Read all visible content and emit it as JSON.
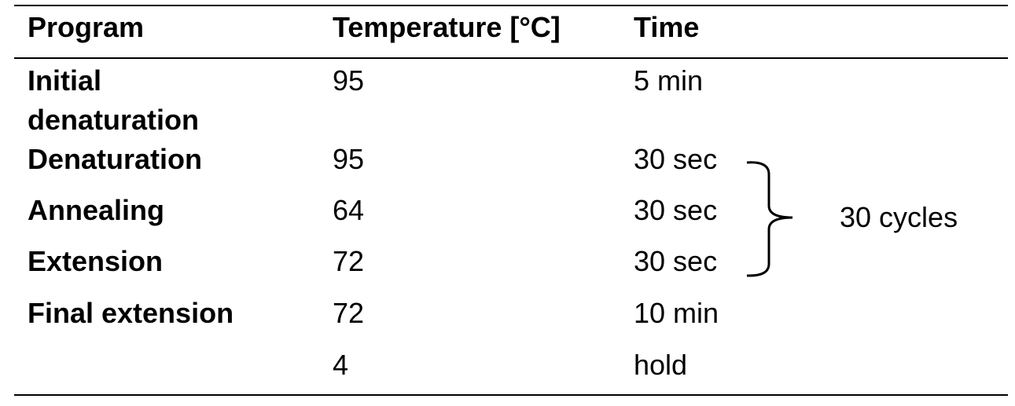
{
  "table": {
    "header": [
      "Program",
      "Temperature [°C]",
      "Time"
    ],
    "rows": [
      {
        "program": "Initial denaturation",
        "temperature": "95",
        "time": "5 min"
      },
      {
        "program": "Denaturation",
        "temperature": "95",
        "time": "30 sec"
      },
      {
        "program": "Annealing",
        "temperature": "64",
        "time": "30 sec"
      },
      {
        "program": "Extension",
        "temperature": "72",
        "time": "30 sec"
      },
      {
        "program": "Final extension",
        "temperature": "72",
        "time": "10 min"
      },
      {
        "temperature": "4",
        "time": "hold"
      }
    ],
    "annotation": "30 cycles"
  }
}
